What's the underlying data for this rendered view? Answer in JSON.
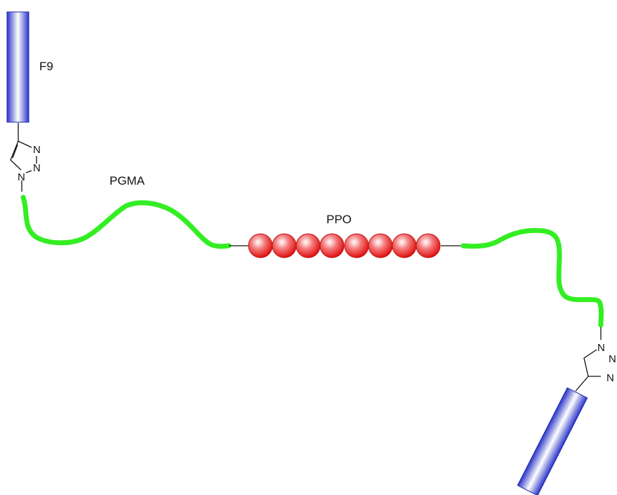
{
  "labels": {
    "end_group": "F9",
    "outer_block": "PGMA",
    "middle_block": "PPO"
  },
  "triazole_atoms": {
    "top": {
      "n_upper": "N",
      "n_mid": "N",
      "n_lower": "N"
    },
    "bottom": {
      "n_top": "N",
      "n_right_upper": "N",
      "n_right_lower": "N"
    }
  },
  "ppo_bead_count": 8,
  "colors": {
    "pgma_chain": "#33ee22",
    "ppo_bead": "#ee2222",
    "f9_block": "#3a46e0",
    "bond": "#111111"
  }
}
